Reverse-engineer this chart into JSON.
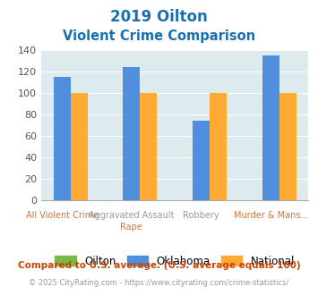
{
  "title_line1": "2019 Oilton",
  "title_line2": "Violent Crime Comparison",
  "title_color": "#1a6faf",
  "groups": [
    {
      "label_top": "",
      "label_bot": "All Violent Crime",
      "oilton": 0,
      "oklahoma": 115,
      "national": 100
    },
    {
      "label_top": "Aggravated Assault",
      "label_bot": "Rape",
      "oilton": 0,
      "oklahoma": 124,
      "national": 100
    },
    {
      "label_top": "Robbery",
      "label_bot": "",
      "oilton": 0,
      "oklahoma": 74,
      "national": 100
    },
    {
      "label_top": "",
      "label_bot": "Murder & Mans...",
      "oilton": 0,
      "oklahoma": 135,
      "national": 100
    }
  ],
  "color_oilton": "#77bb44",
  "color_oklahoma": "#4f8fdd",
  "color_national": "#ffaa33",
  "ylim": [
    0,
    140
  ],
  "yticks": [
    0,
    20,
    40,
    60,
    80,
    100,
    120,
    140
  ],
  "bg_color": "#ddeaee",
  "footer_text": "Compared to U.S. average. (U.S. average equals 100)",
  "footer_color": "#cc4400",
  "credit_text": "© 2025 CityRating.com - https://www.cityrating.com/crime-statistics/",
  "credit_color": "#999999",
  "legend_labels": [
    "Oilton",
    "Oklahoma",
    "National"
  ],
  "label_top_color": "#999999",
  "label_bot_color": "#cc7744"
}
